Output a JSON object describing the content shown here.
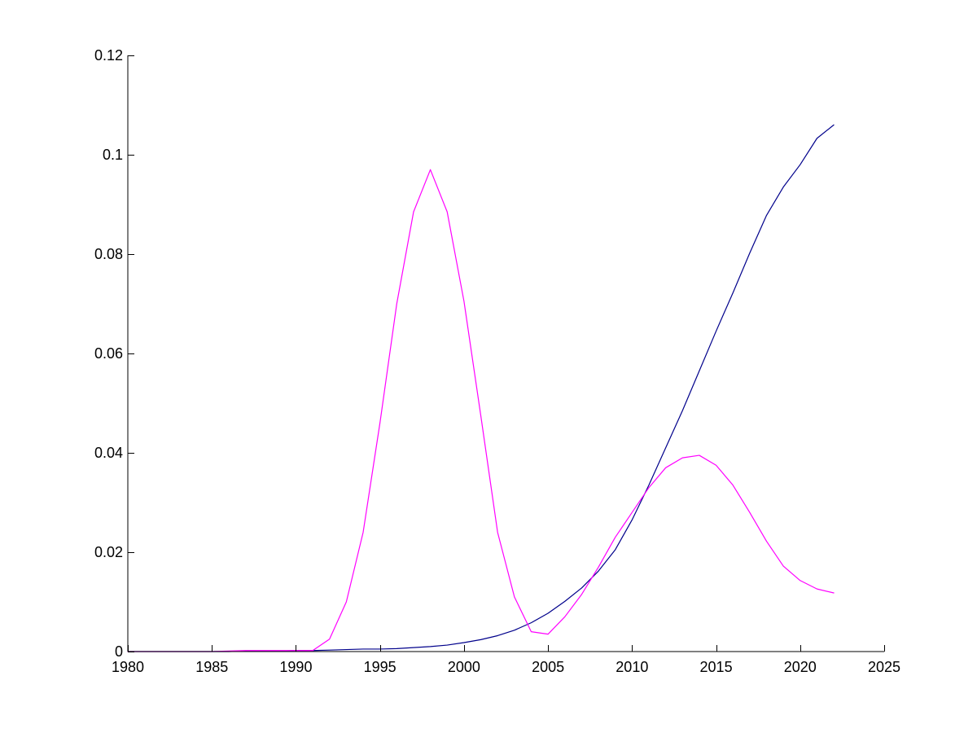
{
  "chart_data": {
    "type": "line",
    "title": "",
    "xlabel": "",
    "ylabel": "",
    "xlim": [
      1980,
      2025
    ],
    "ylim": [
      0,
      0.12
    ],
    "xticks": [
      1980,
      1985,
      1990,
      1995,
      2000,
      2005,
      2010,
      2015,
      2020,
      2025
    ],
    "xtick_labels": [
      "1980",
      "1985",
      "1990",
      "1995",
      "2000",
      "2005",
      "2010",
      "2015",
      "2020",
      "2025"
    ],
    "yticks": [
      0,
      0.02,
      0.04,
      0.06,
      0.08,
      0.1,
      0.12
    ],
    "ytick_labels": [
      "0",
      "0.02",
      "0.04",
      "0.06",
      "0.08",
      "0.1",
      "0.12"
    ],
    "grid": false,
    "legend": "none",
    "series": [
      {
        "color": "#00008b",
        "x": [
          1980,
          1981,
          1982,
          1983,
          1984,
          1985,
          1986,
          1987,
          1988,
          1989,
          1990,
          1991,
          1992,
          1993,
          1994,
          1995,
          1996,
          1997,
          1998,
          1999,
          2000,
          2001,
          2002,
          2003,
          2004,
          2005,
          2006,
          2007,
          2008,
          2009,
          2010,
          2011,
          2012,
          2013,
          2014,
          2015,
          2016,
          2017,
          2018,
          2019,
          2020,
          2021,
          2022
        ],
        "y": [
          0,
          0,
          0,
          0,
          0,
          0,
          0,
          0.0001,
          0.0001,
          0.0001,
          0.0002,
          0.0002,
          0.0003,
          0.0004,
          0.0005,
          0.0005,
          0.0006,
          0.0008,
          0.001,
          0.0013,
          0.0018,
          0.0024,
          0.0032,
          0.0043,
          0.0058,
          0.0077,
          0.0101,
          0.0128,
          0.0162,
          0.0205,
          0.0265,
          0.0335,
          0.041,
          0.0485,
          0.0565,
          0.0645,
          0.0722,
          0.0802,
          0.0878,
          0.0935,
          0.098,
          0.1033,
          0.106
        ]
      },
      {
        "color": "#ff00ff",
        "x": [
          1980,
          1981,
          1982,
          1983,
          1984,
          1985,
          1986,
          1987,
          1988,
          1989,
          1990,
          1991,
          1992,
          1993,
          1994,
          1995,
          1996,
          1997,
          1998,
          1999,
          2000,
          2001,
          2002,
          2003,
          2004,
          2005,
          2006,
          2007,
          2008,
          2009,
          2010,
          2011,
          2012,
          2013,
          2014,
          2015,
          2016,
          2017,
          2018,
          2019,
          2020,
          2021,
          2022
        ],
        "y": [
          0,
          0,
          0,
          0,
          0,
          0,
          0.0001,
          0.0002,
          0.0002,
          0.0002,
          0.0002,
          0.0002,
          0.0025,
          0.01,
          0.024,
          0.046,
          0.07,
          0.0885,
          0.097,
          0.0885,
          0.0705,
          0.0475,
          0.024,
          0.011,
          0.004,
          0.0035,
          0.007,
          0.0115,
          0.017,
          0.023,
          0.028,
          0.033,
          0.037,
          0.039,
          0.0395,
          0.0375,
          0.0335,
          0.028,
          0.0222,
          0.0172,
          0.0143,
          0.0126,
          0.0118
        ]
      }
    ]
  }
}
